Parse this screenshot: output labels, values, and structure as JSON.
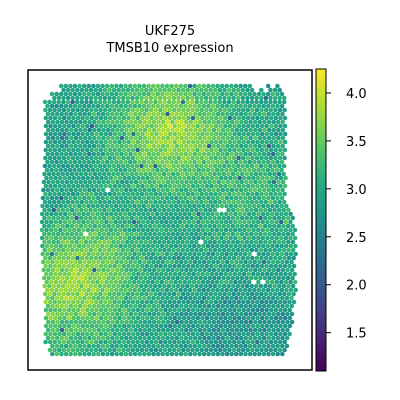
{
  "chart_data": {
    "type": "scatter",
    "title_line1": "UKF275",
    "title_line2": "TMSB10 expression",
    "colormap": "viridis",
    "colorbar": {
      "min": 1.1,
      "max": 4.25,
      "ticks": [
        {
          "value": 1.5,
          "label": "1.5"
        },
        {
          "value": 2.0,
          "label": "2.0"
        },
        {
          "value": 2.5,
          "label": "2.5"
        },
        {
          "value": 3.0,
          "label": "3.0"
        },
        {
          "value": 3.5,
          "label": "3.5"
        },
        {
          "value": 4.0,
          "label": "4.0"
        }
      ]
    },
    "x_range": [
      0,
      100
    ],
    "y_range": [
      0,
      100
    ],
    "grid": false,
    "hotspots": [
      {
        "x": 50,
        "y": 84,
        "value": 3.95
      },
      {
        "x": 8,
        "y": 22,
        "value": 3.6
      },
      {
        "x": 20,
        "y": 35,
        "value": 3.4
      },
      {
        "x": 85,
        "y": 60,
        "value": 3.25
      }
    ],
    "baseline_value": 2.9,
    "white_gaps": [
      [
        25,
        62
      ],
      [
        70,
        54
      ],
      [
        17,
        45
      ],
      [
        62,
        42
      ],
      [
        82,
        38
      ],
      [
        86,
        28
      ],
      [
        82,
        27
      ]
    ]
  }
}
